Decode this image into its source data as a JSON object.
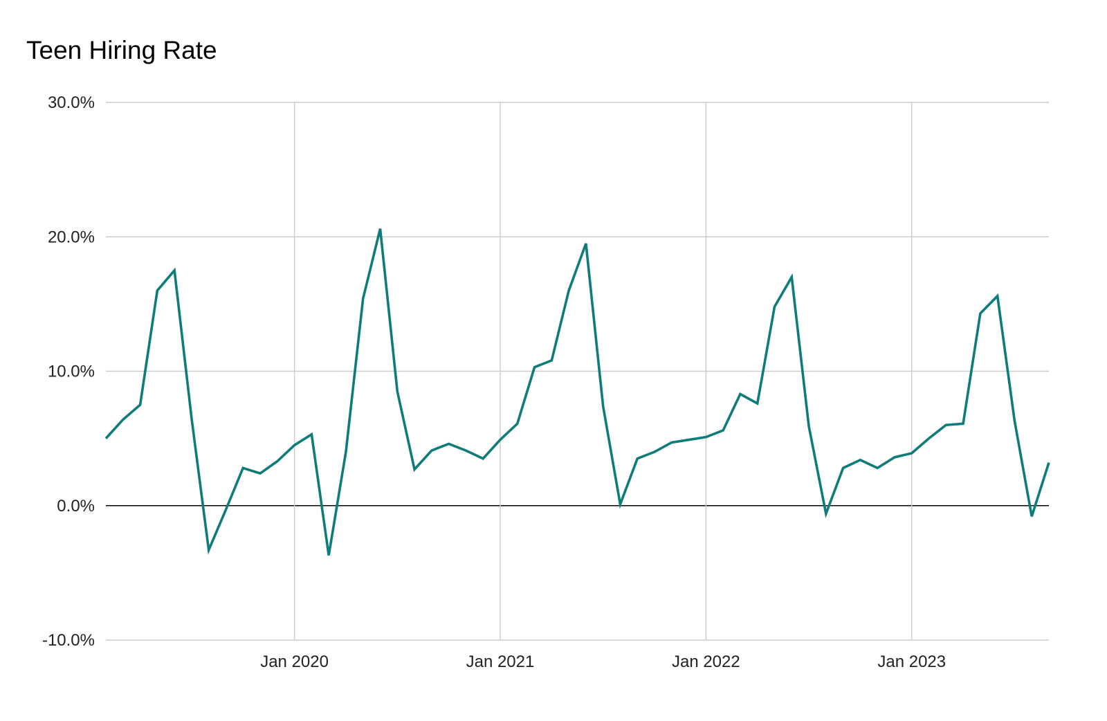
{
  "chart_data": {
    "type": "line",
    "title": "Teen Hiring Rate",
    "xlabel": "",
    "ylabel": "",
    "x_tick_labels": [
      "Jan 2020",
      "Jan 2021",
      "Jan 2022",
      "Jan 2023"
    ],
    "y_tick_labels": [
      "30.0%",
      "20.0%",
      "10.0%",
      "0.0%",
      "-10.0%"
    ],
    "y_ticks": [
      30,
      20,
      10,
      0,
      -10
    ],
    "ylim": [
      -10,
      30
    ],
    "xlim": [
      "2019-02",
      "2023-09"
    ],
    "grid": true,
    "zero_line": true,
    "line_color": "#0e7c78",
    "series": [
      {
        "x": [
          "2019-02",
          "2019-03",
          "2019-04",
          "2019-05",
          "2019-06",
          "2019-07",
          "2019-08",
          "2019-09",
          "2019-10",
          "2019-11",
          "2019-12",
          "2020-01",
          "2020-02",
          "2020-03",
          "2020-04",
          "2020-05",
          "2020-06",
          "2020-07",
          "2020-08",
          "2020-09",
          "2020-10",
          "2020-11",
          "2020-12",
          "2021-01",
          "2021-02",
          "2021-03",
          "2021-04",
          "2021-05",
          "2021-06",
          "2021-07",
          "2021-08",
          "2021-09",
          "2021-10",
          "2021-11",
          "2021-12",
          "2022-01",
          "2022-02",
          "2022-03",
          "2022-04",
          "2022-05",
          "2022-06",
          "2022-07",
          "2022-08",
          "2022-09",
          "2022-10",
          "2022-11",
          "2022-12",
          "2023-01",
          "2023-02",
          "2023-03",
          "2023-04",
          "2023-05",
          "2023-06",
          "2023-07",
          "2023-08",
          "2023-09"
        ],
        "values": [
          5.0,
          6.4,
          7.5,
          16.0,
          17.5,
          6.5,
          -3.3,
          -0.3,
          2.8,
          2.4,
          3.3,
          4.5,
          5.3,
          -3.7,
          4.0,
          15.4,
          20.6,
          8.5,
          2.7,
          4.1,
          4.6,
          4.1,
          3.5,
          4.9,
          6.1,
          10.3,
          10.8,
          16.0,
          19.5,
          7.4,
          0.1,
          3.5,
          4.0,
          4.7,
          4.9,
          5.1,
          5.6,
          8.3,
          7.6,
          14.8,
          17.0,
          5.9,
          -0.6,
          2.8,
          3.4,
          2.8,
          3.6,
          3.9,
          5.0,
          6.0,
          6.1,
          14.3,
          15.6,
          6.3,
          -0.8,
          3.2
        ]
      }
    ]
  }
}
